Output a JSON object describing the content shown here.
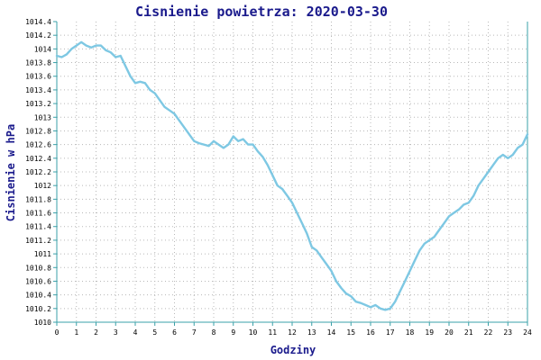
{
  "chart_data": {
    "type": "line",
    "title": "Cisnienie powietrza: 2020-03-30",
    "xlabel": "Godziny",
    "ylabel": "Cisnienie w hPa",
    "xlim": [
      0,
      24
    ],
    "ylim": [
      1010,
      1014.4
    ],
    "grid": true,
    "x_ticks": [
      "0",
      "1",
      "2",
      "3",
      "4",
      "5",
      "6",
      "7",
      "8",
      "9",
      "10",
      "11",
      "12",
      "13",
      "14",
      "15",
      "16",
      "17",
      "18",
      "19",
      "20",
      "21",
      "22",
      "23",
      "24"
    ],
    "y_ticks": [
      "1010",
      "1010.2",
      "1010.4",
      "1010.6",
      "1010.8",
      "1011",
      "1011.2",
      "1011.4",
      "1011.6",
      "1011.8",
      "1012",
      "1012.2",
      "1012.4",
      "1012.6",
      "1012.8",
      "1013",
      "1013.2",
      "1013.4",
      "1013.6",
      "1013.8",
      "1014",
      "1014.2",
      "1014.4"
    ],
    "line_color": "#7ec8e3",
    "series": [
      {
        "x": [
          0,
          0.25,
          0.5,
          0.75,
          1.0,
          1.25,
          1.5,
          1.75,
          2.0,
          2.25,
          2.5,
          2.75,
          3.0,
          3.25,
          3.5,
          3.75,
          4.0,
          4.25,
          4.5,
          4.75,
          5.0,
          5.25,
          5.5,
          5.75,
          6.0,
          6.25,
          6.5,
          6.75,
          7.0,
          7.25,
          7.5,
          7.75,
          8.0,
          8.25,
          8.5,
          8.75,
          9.0,
          9.25,
          9.5,
          9.75,
          10.0,
          10.25,
          10.5,
          10.75,
          11.0,
          11.25,
          11.5,
          11.75,
          12.0,
          12.25,
          12.5,
          12.75,
          13.0,
          13.25,
          13.5,
          13.75,
          14.0,
          14.25,
          14.5,
          14.75,
          15.0,
          15.25,
          15.5,
          15.75,
          16.0,
          16.25,
          16.5,
          16.75,
          17.0,
          17.25,
          17.5,
          17.75,
          18.0,
          18.25,
          18.5,
          18.75,
          19.0,
          19.25,
          19.5,
          19.75,
          20.0,
          20.25,
          20.5,
          20.75,
          21.0,
          21.25,
          21.5,
          21.75,
          22.0,
          22.25,
          22.5,
          22.75,
          23.0,
          23.25,
          23.5,
          23.75,
          24.0
        ],
        "values": [
          1013.9,
          1013.88,
          1013.92,
          1014.0,
          1014.05,
          1014.1,
          1014.05,
          1014.02,
          1014.05,
          1014.05,
          1013.98,
          1013.95,
          1013.88,
          1013.9,
          1013.75,
          1013.6,
          1013.5,
          1013.52,
          1013.5,
          1013.4,
          1013.35,
          1013.25,
          1013.15,
          1013.1,
          1013.05,
          1012.95,
          1012.85,
          1012.75,
          1012.65,
          1012.62,
          1012.6,
          1012.58,
          1012.65,
          1012.6,
          1012.55,
          1012.6,
          1012.72,
          1012.65,
          1012.68,
          1012.6,
          1012.6,
          1012.5,
          1012.42,
          1012.3,
          1012.15,
          1012.0,
          1011.95,
          1011.85,
          1011.75,
          1011.6,
          1011.45,
          1011.3,
          1011.1,
          1011.05,
          1010.95,
          1010.85,
          1010.75,
          1010.6,
          1010.5,
          1010.42,
          1010.38,
          1010.3,
          1010.28,
          1010.25,
          1010.22,
          1010.25,
          1010.2,
          1010.18,
          1010.2,
          1010.3,
          1010.45,
          1010.6,
          1010.75,
          1010.9,
          1011.05,
          1011.15,
          1011.2,
          1011.25,
          1011.35,
          1011.45,
          1011.55,
          1011.6,
          1011.65,
          1011.72,
          1011.75,
          1011.85,
          1012.0,
          1012.1,
          1012.2,
          1012.3,
          1012.4,
          1012.45,
          1012.4,
          1012.45,
          1012.55,
          1012.6,
          1012.75
        ]
      }
    ]
  }
}
